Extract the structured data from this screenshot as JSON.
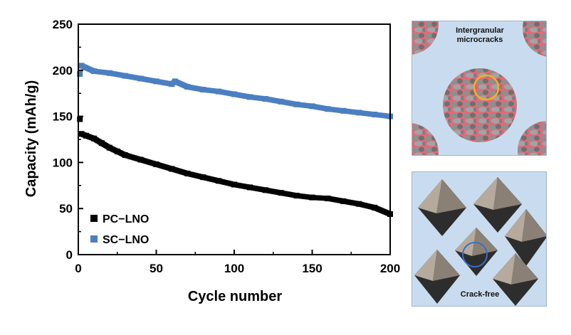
{
  "chart_data": {
    "type": "scatter",
    "xlabel": "Cycle number",
    "ylabel": "Capacity (mAh/g)",
    "xlim": [
      0,
      200
    ],
    "ylim": [
      0,
      250
    ],
    "xticks": [
      0,
      50,
      100,
      150,
      200
    ],
    "yticks": [
      0,
      50,
      100,
      150,
      200,
      250
    ],
    "grid": false,
    "legend_position": "bottom-left",
    "series": [
      {
        "name": "PC−LNO",
        "color": "#000000",
        "x": [
          1,
          2,
          5,
          10,
          15,
          20,
          25,
          30,
          40,
          50,
          60,
          70,
          80,
          90,
          100,
          110,
          120,
          130,
          140,
          150,
          160,
          170,
          180,
          190,
          200
        ],
        "y": [
          147,
          131,
          129,
          126,
          121,
          116,
          112,
          108,
          103,
          98,
          93,
          88,
          84,
          80,
          76,
          73,
          70,
          67,
          64,
          62,
          61,
          58,
          55,
          51,
          44
        ]
      },
      {
        "name": "SC−LNO",
        "color": "#4a7fc1",
        "x": [
          1,
          2,
          10,
          20,
          30,
          40,
          50,
          60,
          62,
          70,
          80,
          90,
          100,
          110,
          120,
          130,
          140,
          150,
          160,
          170,
          180,
          190,
          200
        ],
        "y": [
          196,
          205,
          199,
          197,
          194,
          191,
          188,
          185,
          188,
          182,
          179,
          177,
          174,
          171,
          169,
          166,
          163,
          161,
          158,
          156,
          154,
          152,
          150
        ]
      }
    ]
  },
  "panels": {
    "top_label": "Intergranular microcracks",
    "bottom_label": "Crack-free"
  },
  "colors": {
    "panel_bg": "#c9dcef",
    "grain_gray": "#8a8a8a",
    "grain_boundary": "#e06a7a",
    "circle_top": "#f3b21b",
    "circle_bottom": "#3a6fc4",
    "octahedron_light": "#b5aa9c",
    "octahedron_dark": "#2d2d2d"
  }
}
